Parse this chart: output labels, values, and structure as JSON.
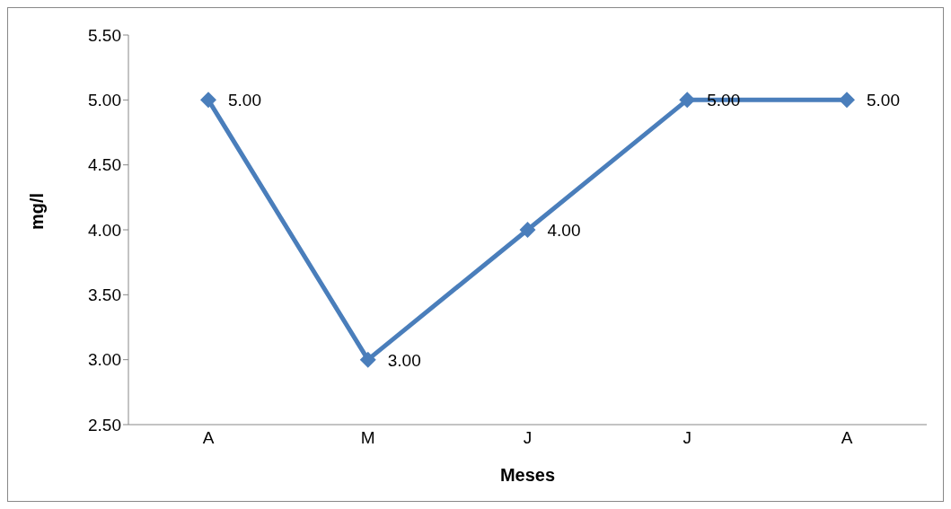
{
  "chart_data": {
    "type": "line",
    "xlabel": "Meses",
    "ylabel": "mg/l",
    "categories": [
      "A",
      "M",
      "J",
      "J",
      "A"
    ],
    "series": [
      {
        "color": "#4a7ebb",
        "values": [
          5,
          3,
          4,
          5,
          5
        ],
        "value_labels": [
          "5.00",
          "3.00",
          "4.00",
          "5.00",
          "5.00"
        ]
      }
    ],
    "ylim": [
      2.5,
      5.5
    ],
    "yticks": [
      {
        "value": 2.5,
        "label": "2.50"
      },
      {
        "value": 3,
        "label": "3.00"
      },
      {
        "value": 3.5,
        "label": "3.50"
      },
      {
        "value": 4,
        "label": "4.00"
      },
      {
        "value": 4.5,
        "label": "4.50"
      },
      {
        "value": 5,
        "label": "5.00"
      },
      {
        "value": 5.5,
        "label": "5.50"
      }
    ],
    "grid": false,
    "legend": false,
    "marker": "diamond",
    "line_style": "solid"
  }
}
